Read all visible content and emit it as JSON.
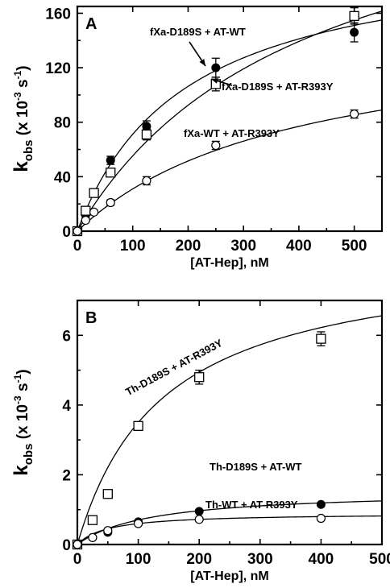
{
  "chart_data": [
    {
      "type": "scatter",
      "panel_label": "A",
      "xlabel": "[AT-Hep], nM",
      "ylabel_main": "k",
      "ylabel_sub": "obs",
      "ylabel_unit": "(x 10",
      "ylabel_exp": "-3",
      "ylabel_unit2": " s",
      "ylabel_exp2": "-1",
      "ylabel_close": ")",
      "xlim": [
        0,
        550
      ],
      "ylim": [
        0,
        165
      ],
      "xticks": [
        0,
        100,
        200,
        300,
        400,
        500
      ],
      "yticks": [
        0,
        40,
        80,
        120,
        160
      ],
      "series": [
        {
          "name": "fXa-D189S + AT-WT",
          "marker": "filled-circle",
          "x": [
            0,
            15,
            30,
            60,
            125,
            250,
            500
          ],
          "y": [
            0,
            12,
            28,
            52,
            77,
            120,
            146
          ],
          "err": [
            0,
            2,
            2,
            3,
            4,
            7,
            7
          ],
          "fit": {
            "vmax": 210,
            "km": 195
          }
        },
        {
          "name": "fXa-D189S + AT-R393Y",
          "marker": "open-square",
          "x": [
            0,
            15,
            30,
            60,
            125,
            250,
            500
          ],
          "y": [
            0,
            15,
            28,
            43,
            71,
            108,
            158
          ],
          "err": [
            0,
            2,
            2,
            3,
            4,
            5,
            6
          ],
          "fit": {
            "vmax": 282,
            "km": 410
          }
        },
        {
          "name": "fXa-WT + AT-R393Y",
          "marker": "open-circle",
          "x": [
            0,
            15,
            30,
            60,
            125,
            250,
            500
          ],
          "y": [
            0,
            8,
            14,
            21,
            37,
            63,
            86
          ],
          "err": [
            0,
            1,
            1,
            2,
            3,
            3,
            3
          ],
          "fit": {
            "vmax": 152,
            "km": 390
          }
        }
      ],
      "annotations": [
        {
          "text": "fXa-D189S + AT-WT"
        },
        {
          "text": "fXa-D189S + AT-R393Y"
        },
        {
          "text": "fXa-WT + AT-R393Y"
        }
      ]
    },
    {
      "type": "scatter",
      "panel_label": "B",
      "xlabel": "[AT-Hep], nM",
      "ylabel_main": "k",
      "ylabel_sub": "obs",
      "ylabel_unit": "(x 10",
      "ylabel_exp": "-3",
      "ylabel_unit2": " s",
      "ylabel_exp2": "-1",
      "ylabel_close": ")",
      "xlim": [
        0,
        500
      ],
      "ylim": [
        0,
        7
      ],
      "xticks": [
        0,
        100,
        200,
        300,
        400,
        500
      ],
      "yticks": [
        0,
        2,
        4,
        6
      ],
      "series": [
        {
          "name": "Th-D189S + AT-R393Y",
          "marker": "open-square",
          "x": [
            0,
            25,
            50,
            100,
            200,
            400
          ],
          "y": [
            0,
            0.7,
            1.45,
            3.4,
            4.8,
            5.9
          ],
          "err": [
            0,
            0.05,
            0.05,
            0.1,
            0.2,
            0.2
          ],
          "fit": {
            "vmax": 8.4,
            "km": 140
          }
        },
        {
          "name": "Th-D189S + AT-WT",
          "marker": "filled-circle",
          "x": [
            0,
            25,
            50,
            100,
            200,
            400
          ],
          "y": [
            0,
            0.2,
            0.35,
            0.65,
            0.95,
            1.15
          ],
          "err": [
            0,
            0,
            0,
            0,
            0,
            0
          ],
          "fit": {
            "vmax": 1.55,
            "km": 120
          }
        },
        {
          "name": "Th-WT + AT-R393Y",
          "marker": "open-circle",
          "x": [
            0,
            25,
            50,
            100,
            200,
            400
          ],
          "y": [
            0,
            0.2,
            0.4,
            0.6,
            0.72,
            0.75
          ],
          "err": [
            0,
            0,
            0,
            0,
            0,
            0
          ],
          "fit": {
            "vmax": 0.9,
            "km": 50
          }
        }
      ],
      "annotations": [
        {
          "text": "Th-D189S + AT-R393Y"
        },
        {
          "text": "Th-D189S + AT-WT"
        },
        {
          "text": "Th-WT + AT-R393Y"
        }
      ]
    }
  ]
}
